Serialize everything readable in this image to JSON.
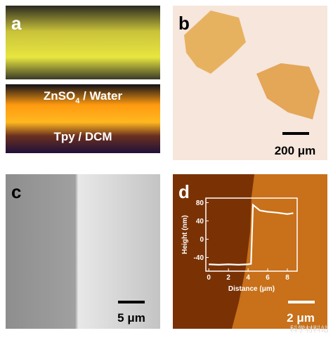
{
  "panels": {
    "a": {
      "label": "a",
      "top_label": {
        "text": "ZnSO",
        "sub": "4",
        "rest": " / Water"
      },
      "bottom_label": "Tpy / DCM"
    },
    "b": {
      "label": "b",
      "scale_bar": "200 μm"
    },
    "c": {
      "label": "c",
      "scale_bar": "5 μm"
    },
    "d": {
      "label": "d",
      "scale_bar": "2 μm"
    }
  },
  "watermark": "科学材料站",
  "chart_data": {
    "type": "line",
    "x_label": "Distance (μm)",
    "y_label": "Height (nm)",
    "x": [
      0,
      1,
      2,
      3,
      4,
      4.3,
      4.5,
      4.8,
      5.2,
      6,
      7,
      8,
      8.6
    ],
    "series": [
      {
        "color": "#ffffff",
        "values": [
          -55,
          -56,
          -55,
          -56,
          -55,
          -54,
          75,
          70,
          63,
          60,
          58,
          55,
          57
        ]
      }
    ],
    "xlim": [
      -0.3,
      9
    ],
    "ylim": [
      -70,
      90
    ],
    "xticks": [
      0,
      2,
      4,
      6,
      8
    ],
    "yticks": [
      -40,
      0,
      40,
      80
    ]
  }
}
